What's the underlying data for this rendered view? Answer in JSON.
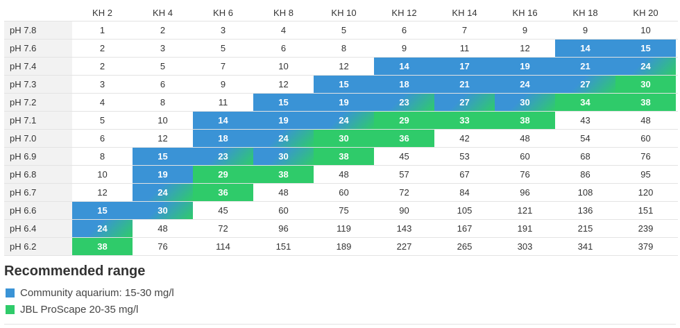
{
  "table": {
    "columns": [
      "KH 2",
      "KH 4",
      "KH 6",
      "KH 8",
      "KH 10",
      "KH 12",
      "KH 14",
      "KH 16",
      "KH 18",
      "KH 20"
    ],
    "rows": [
      {
        "label": "pH 7.8",
        "values": [
          "1",
          "2",
          "3",
          "4",
          "5",
          "6",
          "7",
          "9",
          "9",
          "10"
        ],
        "hl": [
          "",
          "",
          "",
          "",
          "",
          "",
          "",
          "",
          "",
          ""
        ]
      },
      {
        "label": "pH 7.6",
        "values": [
          "2",
          "3",
          "5",
          "6",
          "8",
          "9",
          "11",
          "12",
          "14",
          "15"
        ],
        "hl": [
          "",
          "",
          "",
          "",
          "",
          "",
          "",
          "",
          "b",
          "b"
        ]
      },
      {
        "label": "pH 7.4",
        "values": [
          "2",
          "5",
          "7",
          "10",
          "12",
          "14",
          "17",
          "19",
          "21",
          "24"
        ],
        "hl": [
          "",
          "",
          "",
          "",
          "",
          "b",
          "b",
          "b",
          "b",
          "bg"
        ]
      },
      {
        "label": "pH 7.3",
        "values": [
          "3",
          "6",
          "9",
          "12",
          "15",
          "18",
          "21",
          "24",
          "27",
          "30"
        ],
        "hl": [
          "",
          "",
          "",
          "",
          "b",
          "b",
          "b",
          "b",
          "bg",
          "g"
        ]
      },
      {
        "label": "pH 7.2",
        "values": [
          "4",
          "8",
          "11",
          "15",
          "19",
          "23",
          "27",
          "30",
          "34",
          "38"
        ],
        "hl": [
          "",
          "",
          "",
          "b",
          "b",
          "bg",
          "bg",
          "bg",
          "g",
          "g"
        ]
      },
      {
        "label": "pH 7.1",
        "values": [
          "5",
          "10",
          "14",
          "19",
          "24",
          "29",
          "33",
          "38",
          "43",
          "48"
        ],
        "hl": [
          "",
          "",
          "b",
          "b",
          "bg",
          "g",
          "g",
          "g",
          "",
          ""
        ]
      },
      {
        "label": "pH 7.0",
        "values": [
          "6",
          "12",
          "18",
          "24",
          "30",
          "36",
          "42",
          "48",
          "54",
          "60"
        ],
        "hl": [
          "",
          "",
          "b",
          "bg",
          "g",
          "g",
          "",
          "",
          "",
          ""
        ]
      },
      {
        "label": "pH 6.9",
        "values": [
          "8",
          "15",
          "23",
          "30",
          "38",
          "45",
          "53",
          "60",
          "68",
          "76"
        ],
        "hl": [
          "",
          "b",
          "bg",
          "bg",
          "g",
          "",
          "",
          "",
          "",
          ""
        ]
      },
      {
        "label": "pH 6.8",
        "values": [
          "10",
          "19",
          "29",
          "38",
          "48",
          "57",
          "67",
          "76",
          "86",
          "95"
        ],
        "hl": [
          "",
          "b",
          "g",
          "g",
          "",
          "",
          "",
          "",
          "",
          ""
        ]
      },
      {
        "label": "pH 6.7",
        "values": [
          "12",
          "24",
          "36",
          "48",
          "60",
          "72",
          "84",
          "96",
          "108",
          "120"
        ],
        "hl": [
          "",
          "bg",
          "g",
          "",
          "",
          "",
          "",
          "",
          "",
          ""
        ]
      },
      {
        "label": "pH 6.6",
        "values": [
          "15",
          "30",
          "45",
          "60",
          "75",
          "90",
          "105",
          "121",
          "136",
          "151"
        ],
        "hl": [
          "b",
          "bg",
          "",
          "",
          "",
          "",
          "",
          "",
          "",
          ""
        ]
      },
      {
        "label": "pH 6.4",
        "values": [
          "24",
          "48",
          "72",
          "96",
          "119",
          "143",
          "167",
          "191",
          "215",
          "239"
        ],
        "hl": [
          "bg",
          "",
          "",
          "",
          "",
          "",
          "",
          "",
          "",
          ""
        ]
      },
      {
        "label": "pH 6.2",
        "values": [
          "38",
          "76",
          "114",
          "151",
          "189",
          "227",
          "265",
          "303",
          "341",
          "379"
        ],
        "hl": [
          "g",
          "",
          "",
          "",
          "",
          "",
          "",
          "",
          "",
          ""
        ]
      }
    ]
  },
  "legend": {
    "title": "Recommended range",
    "items": [
      {
        "label": "Community aquarium: 15-30 mg/l",
        "color": "#3a93d6"
      },
      {
        "label": "JBL ProScape 20-35 mg/l",
        "color": "#2fcb6a"
      }
    ]
  }
}
